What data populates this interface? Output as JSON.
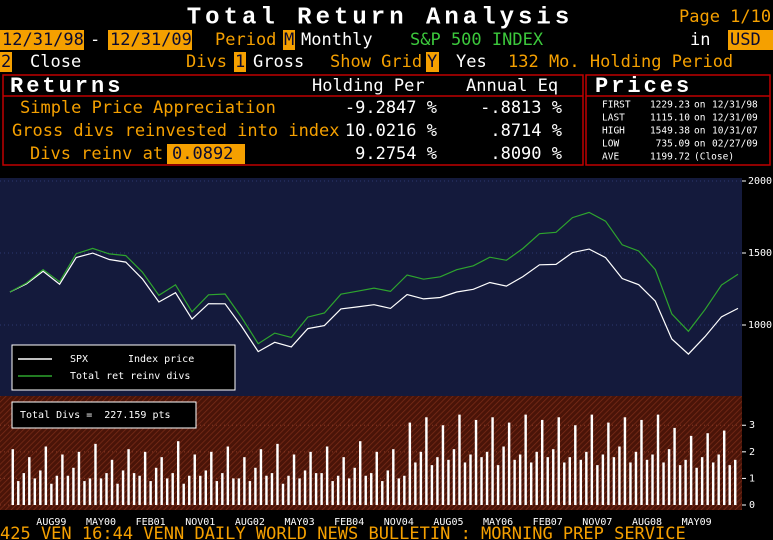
{
  "header": {
    "title": "Total Return Analysis",
    "page": "Page 1/10"
  },
  "controls": {
    "start": "12/31/98",
    "separator": "-",
    "end": "12/31/09",
    "period_label": "Period",
    "period_code": "M",
    "period": "Monthly",
    "index": "S&P 500 INDEX",
    "currency_label": "in",
    "currency": "USD",
    "price_code": "2",
    "price": "Close",
    "divs_label": "Divs",
    "divs_code": "1",
    "divs": "Gross",
    "grid_label": "Show Grid",
    "grid_code": "Y",
    "grid": "Yes",
    "holding": "132 Mo. Holding Period"
  },
  "returns": {
    "title": "Returns",
    "columns": [
      "Holding Per",
      "Annual Eq"
    ],
    "rows": [
      {
        "label": "Simple Price Appreciation",
        "values": [
          "-9.2847 %",
          "-.8813 %"
        ]
      },
      {
        "label": "Gross divs reinvested into index",
        "values": [
          "10.0216 %",
          ".8714 %"
        ]
      },
      {
        "label": "Divs reinv at",
        "input": "0.0892",
        "values": [
          "9.2754 %",
          ".8090 %"
        ]
      }
    ]
  },
  "prices": {
    "title": "Prices",
    "rows": [
      [
        "FIRST",
        "1229.23",
        "on",
        "12/31/98"
      ],
      [
        "LAST",
        "1115.10",
        "on",
        "12/31/09"
      ],
      [
        "HIGH",
        "1549.38",
        "on",
        "10/31/07"
      ],
      [
        "LOW",
        "735.09",
        "on",
        "02/27/09"
      ],
      [
        "AVE",
        "1199.72",
        "(Close)"
      ]
    ]
  },
  "chart_data": [
    {
      "type": "line",
      "x": [
        "1998-12",
        "1999-03",
        "1999-06",
        "1999-09",
        "1999-12",
        "2000-03",
        "2000-06",
        "2000-09",
        "2000-12",
        "2001-03",
        "2001-06",
        "2001-09",
        "2001-12",
        "2002-03",
        "2002-06",
        "2002-09",
        "2002-12",
        "2003-03",
        "2003-06",
        "2003-09",
        "2003-12",
        "2004-03",
        "2004-06",
        "2004-09",
        "2004-12",
        "2005-03",
        "2005-06",
        "2005-09",
        "2005-12",
        "2006-03",
        "2006-06",
        "2006-09",
        "2006-12",
        "2007-03",
        "2007-06",
        "2007-09",
        "2007-12",
        "2008-03",
        "2008-06",
        "2008-09",
        "2008-12",
        "2009-03",
        "2009-06",
        "2009-09",
        "2009-12"
      ],
      "series": [
        {
          "name": "SPX",
          "label": "Index price",
          "color": "#ffffff",
          "values": [
            1229,
            1286,
            1373,
            1283,
            1469,
            1499,
            1455,
            1437,
            1320,
            1160,
            1224,
            1041,
            1148,
            1147,
            990,
            815,
            880,
            848,
            975,
            996,
            1112,
            1126,
            1141,
            1115,
            1212,
            1181,
            1191,
            1229,
            1248,
            1295,
            1270,
            1336,
            1418,
            1421,
            1503,
            1527,
            1468,
            1323,
            1280,
            1166,
            903,
            798,
            919,
            1057,
            1115
          ]
        },
        {
          "name": "Total ret reinv divs",
          "color": "#2ea52e",
          "values": [
            1229,
            1292,
            1385,
            1300,
            1495,
            1532,
            1494,
            1482,
            1367,
            1206,
            1279,
            1092,
            1210,
            1215,
            1052,
            870,
            944,
            914,
            1055,
            1083,
            1214,
            1235,
            1256,
            1233,
            1347,
            1318,
            1335,
            1384,
            1411,
            1471,
            1449,
            1531,
            1634,
            1644,
            1746,
            1782,
            1721,
            1557,
            1514,
            1385,
            1077,
            956,
            1106,
            1278,
            1352
          ]
        }
      ],
      "ylim": [
        500,
        2000
      ],
      "yticks": [
        1000,
        1500,
        2000
      ],
      "grid": true,
      "legend": "lower left"
    },
    {
      "type": "bar",
      "categories": [
        null,
        null,
        null,
        null,
        null,
        null,
        null,
        "AUG99",
        null,
        null,
        null,
        null,
        null,
        null,
        null,
        null,
        "MAY00",
        null,
        null,
        null,
        null,
        null,
        null,
        null,
        null,
        "FEB01",
        null,
        null,
        null,
        null,
        null,
        null,
        null,
        null,
        "NOV01",
        null,
        null,
        null,
        null,
        null,
        null,
        null,
        null,
        "AUG02",
        null,
        null,
        null,
        null,
        null,
        null,
        null,
        null,
        "MAY03",
        null,
        null,
        null,
        null,
        null,
        null,
        null,
        null,
        "FEB04",
        null,
        null,
        null,
        null,
        null,
        null,
        null,
        null,
        "NOV04",
        null,
        null,
        null,
        null,
        null,
        null,
        null,
        null,
        "AUG05",
        null,
        null,
        null,
        null,
        null,
        null,
        null,
        null,
        "MAY06",
        null,
        null,
        null,
        null,
        null,
        null,
        null,
        null,
        "FEB07",
        null,
        null,
        null,
        null,
        null,
        null,
        null,
        null,
        "NOV07",
        null,
        null,
        null,
        null,
        null,
        null,
        null,
        null,
        "AUG08",
        null,
        null,
        null,
        null,
        null,
        null,
        null,
        null,
        "MAY09",
        null,
        null,
        null,
        null,
        null,
        null,
        null
      ],
      "values": [
        2.1,
        0.9,
        1.2,
        1.8,
        1.0,
        1.3,
        2.2,
        0.8,
        1.1,
        1.9,
        1.1,
        1.4,
        2.0,
        0.9,
        1.0,
        2.3,
        1.0,
        1.2,
        1.7,
        0.8,
        1.3,
        2.1,
        1.2,
        1.1,
        2.0,
        0.9,
        1.4,
        1.8,
        1.0,
        1.2,
        2.4,
        0.8,
        1.1,
        1.9,
        1.1,
        1.3,
        2.0,
        0.9,
        1.2,
        2.2,
        1.0,
        1.0,
        1.8,
        0.9,
        1.4,
        2.1,
        1.1,
        1.2,
        2.3,
        0.8,
        1.1,
        1.9,
        1.0,
        1.3,
        2.0,
        1.2,
        1.2,
        2.2,
        0.9,
        1.1,
        1.8,
        1.0,
        1.4,
        2.4,
        1.1,
        1.2,
        2.0,
        0.9,
        1.3,
        2.1,
        1.0,
        1.1,
        3.1,
        1.6,
        2.0,
        3.3,
        1.5,
        1.8,
        3.0,
        1.7,
        2.1,
        3.4,
        1.6,
        1.9,
        3.2,
        1.8,
        2.0,
        3.3,
        1.5,
        2.2,
        3.1,
        1.7,
        1.9,
        3.4,
        1.6,
        2.0,
        3.2,
        1.8,
        2.1,
        3.3,
        1.6,
        1.8,
        3.0,
        1.7,
        2.0,
        3.4,
        1.5,
        1.9,
        3.1,
        1.8,
        2.2,
        3.3,
        1.6,
        2.0,
        3.2,
        1.7,
        1.9,
        3.4,
        1.6,
        2.1,
        2.9,
        1.5,
        1.7,
        2.6,
        1.4,
        1.8,
        2.7,
        1.6,
        1.9,
        2.8,
        1.5,
        1.7
      ],
      "color": "#ffffff",
      "ylim": [
        0,
        4.1
      ],
      "yticks": [
        0,
        1,
        2,
        3
      ],
      "grid": true,
      "annotation": "Total Divs =  227.159 pts"
    }
  ],
  "ticker": "425 VEN 16:44 VENN DAILY WORLD NEWS BULLETIN : MORNING PREP SERVICE"
}
